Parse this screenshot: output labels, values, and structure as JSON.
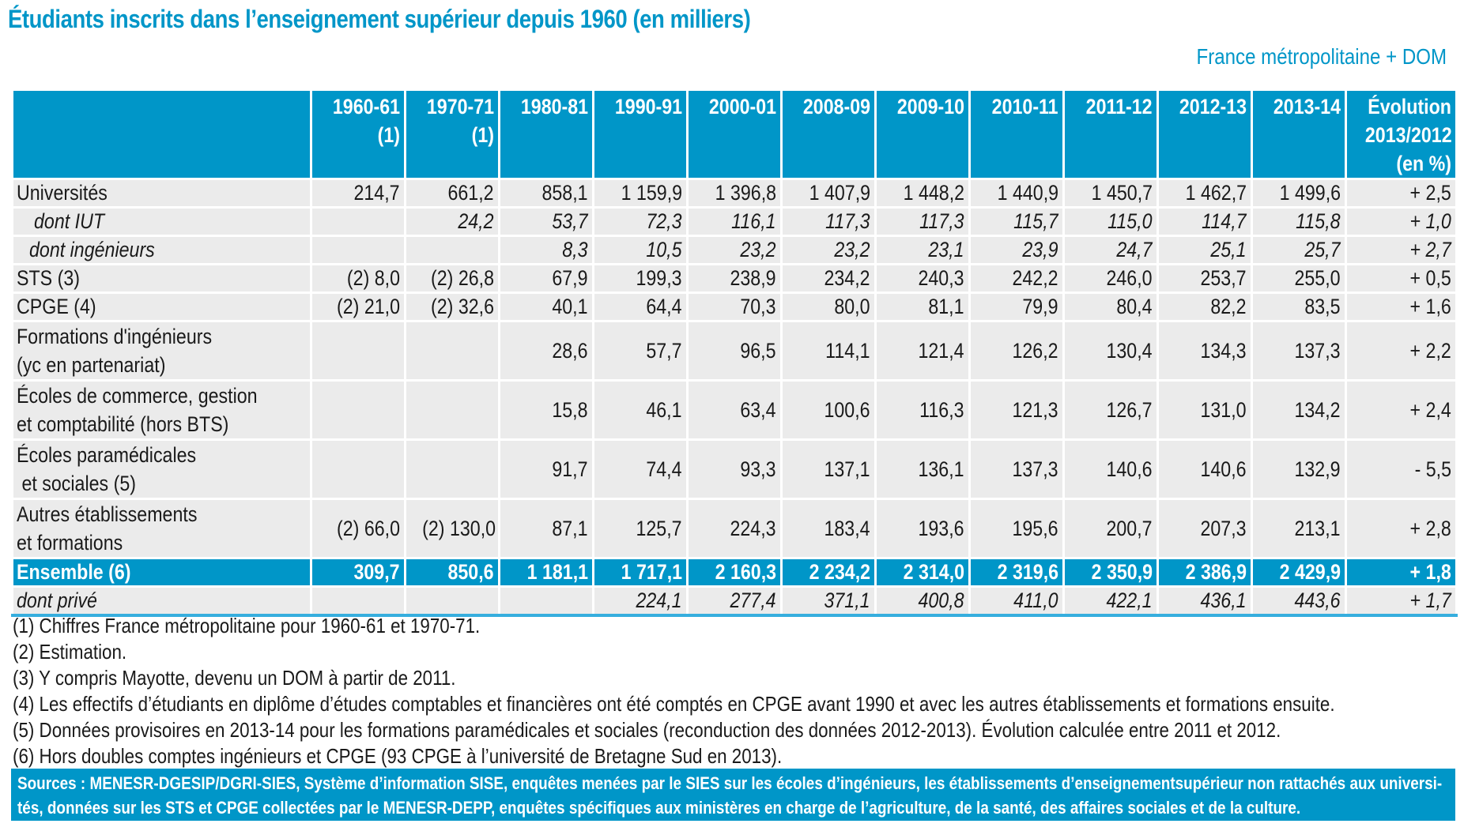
{
  "title": "Étudiants inscrits dans l’enseignement supérieur depuis 1960 (en milliers)",
  "subtitle": "France métropolitaine + DOM",
  "colors": {
    "accent": "#0096c8",
    "cell_bg": "#ebebeb",
    "text": "#1a1a1a"
  },
  "table": {
    "headers": [
      [
        "1960-61",
        "(1)"
      ],
      [
        "1970-71",
        "(1)"
      ],
      [
        "1980-81"
      ],
      [
        "1990-91"
      ],
      [
        "2000-01"
      ],
      [
        "2008-09"
      ],
      [
        "2009-10"
      ],
      [
        "2010-11"
      ],
      [
        "2011-12"
      ],
      [
        "2012-13"
      ],
      [
        "2013-14"
      ],
      [
        "Évolution",
        "2013/2012",
        "(en %)"
      ]
    ],
    "rows": [
      {
        "label": [
          "Universités"
        ],
        "values": [
          "214,7",
          "661,2",
          "858,1",
          "1 159,9",
          "1 396,8",
          "1 407,9",
          "1 448,2",
          "1 440,9",
          "1 450,7",
          "1 462,7",
          "1 499,6",
          "+ 2,5"
        ]
      },
      {
        "label": [
          "dont IUT"
        ],
        "values": [
          "",
          "24,2",
          "53,7",
          "72,3",
          "116,1",
          "117,3",
          "117,3",
          "115,7",
          "115,0",
          "114,7",
          "115,8",
          "+ 1,0"
        ]
      },
      {
        "label": [
          "dont ingénieurs"
        ],
        "values": [
          "",
          "",
          "8,3",
          "10,5",
          "23,2",
          "23,2",
          "23,1",
          "23,9",
          "24,7",
          "25,1",
          "25,7",
          "+ 2,7"
        ]
      },
      {
        "label": [
          "STS (3)"
        ],
        "values": [
          "(2) 8,0",
          "(2) 26,8",
          "67,9",
          "199,3",
          "238,9",
          "234,2",
          "240,3",
          "242,2",
          "246,0",
          "253,7",
          "255,0",
          "+ 0,5"
        ]
      },
      {
        "label": [
          "CPGE (4)"
        ],
        "values": [
          "(2) 21,0",
          "(2) 32,6",
          "40,1",
          "64,4",
          "70,3",
          "80,0",
          "81,1",
          "79,9",
          "80,4",
          "82,2",
          "83,5",
          "+ 1,6"
        ]
      },
      {
        "label": [
          "Formations d'ingénieurs",
          "(yc en partenariat)"
        ],
        "values": [
          "",
          "",
          "28,6",
          "57,7",
          "96,5",
          "114,1",
          "121,4",
          "126,2",
          "130,4",
          "134,3",
          "137,3",
          "+ 2,2"
        ]
      },
      {
        "label": [
          "Écoles de commerce, gestion",
          "et comptabilité (hors BTS)"
        ],
        "values": [
          "",
          "",
          "15,8",
          "46,1",
          "63,4",
          "100,6",
          "116,3",
          "121,3",
          "126,7",
          "131,0",
          "134,2",
          "+ 2,4"
        ]
      },
      {
        "label": [
          "Écoles paramédicales",
          " et sociales (5)"
        ],
        "values": [
          "",
          "",
          "91,7",
          "74,4",
          "93,3",
          "137,1",
          "136,1",
          "137,3",
          "140,6",
          "140,6",
          "132,9",
          "- 5,5"
        ]
      },
      {
        "label": [
          "Autres établissements",
          "et formations"
        ],
        "values": [
          "(2) 66,0",
          "(2) 130,0",
          "87,1",
          "125,7",
          "224,3",
          "183,4",
          "193,6",
          "195,6",
          "200,7",
          "207,3",
          "213,1",
          "+ 2,8"
        ]
      },
      {
        "label": [
          "Ensemble (6)"
        ],
        "values": [
          "309,7",
          "850,6",
          "1 181,1",
          "1 717,1",
          "2 160,3",
          "2 234,2",
          "2 314,0",
          "2 319,6",
          "2 350,9",
          "2 386,9",
          "2 429,9",
          "+ 1,8"
        ]
      },
      {
        "label": [
          "dont privé"
        ],
        "values": [
          "",
          "",
          "",
          "224,1",
          "277,4",
          "371,1",
          "400,8",
          "411,0",
          "422,1",
          "436,1",
          "443,6",
          "+ 1,7"
        ]
      }
    ]
  },
  "notes": [
    "(1) Chiffres France métropolitaine pour 1960-61 et 1970-71.",
    "(2) Estimation.",
    "(3) Y compris Mayotte, devenu un DOM à partir de 2011.",
    "(4) Les effectifs d’étudiants en diplôme d’études comptables et financières ont été comptés en CPGE avant 1990 et avec les autres établissements et formations ensuite.",
    "(5) Données provisoires en 2013-14 pour les formations paramédicales et sociales (reconduction des données 2012-2013). Évolution calculée entre 2011 et 2012.",
    "(6) Hors doubles comptes ingénieurs et CPGE (93 CPGE à l’université de Bretagne Sud en 2013)."
  ],
  "sources": [
    "Sources : MENESR-DGESIP/DGRI-SIES, Système d’information SISE, enquêtes menées par le SIES sur les écoles d’ingénieurs, les établissements d’enseignementsupérieur non rattachés aux universi-",
    "tés, données sur les STS et CPGE collectées par le MENESR-DEPP, enquêtes spécifiques aux ministères en charge de l’agriculture, de la santé, des affaires sociales et de la culture."
  ]
}
